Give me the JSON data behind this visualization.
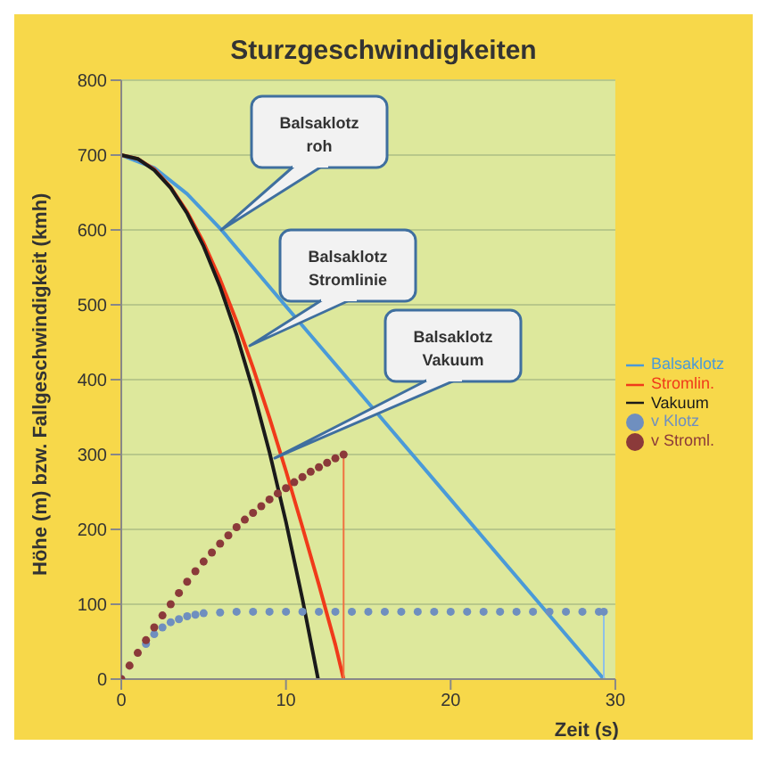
{
  "chart_data": {
    "type": "line",
    "title": "Sturzgeschwindigkeiten",
    "xlabel": "Zeit (s)",
    "ylabel": "Höhe (m) bzw. Fallgeschwindigkeit (kmh)",
    "xlim": [
      0,
      30
    ],
    "ylim": [
      0,
      800
    ],
    "xticks": [
      0,
      10,
      20,
      30
    ],
    "yticks": [
      0,
      100,
      200,
      300,
      400,
      500,
      600,
      700,
      800
    ],
    "grid": "y",
    "legend": "right",
    "series": [
      {
        "name": "Balsaklotz",
        "color": "#4a9ad8",
        "x": [
          0,
          2,
          4,
          6,
          10,
          15,
          20,
          25,
          29.3
        ],
        "values": [
          700,
          683,
          648,
          602,
          498,
          369,
          240,
          111,
          0
        ]
      },
      {
        "name": "Stromlin.",
        "color": "#f03a1a",
        "x": [
          0,
          1,
          2,
          3,
          4,
          5,
          6,
          7,
          8,
          9,
          10,
          11,
          12,
          13,
          13.5
        ],
        "values": [
          700,
          695,
          681,
          657,
          624,
          583,
          534,
          478,
          416,
          349,
          278,
          203,
          126,
          46,
          0
        ]
      },
      {
        "name": "Vakuum",
        "color": "#1a1a1a",
        "x": [
          0,
          1,
          2,
          3,
          4,
          5,
          6,
          7,
          8,
          9,
          10,
          11,
          11.95
        ],
        "values": [
          700,
          695,
          680,
          656,
          622,
          578,
          524,
          460,
          386,
          303,
          210,
          107,
          0
        ]
      },
      {
        "name": "v Klotz",
        "type": "scatter",
        "color": "#6f8fbf",
        "marker": "circle",
        "x": [
          0,
          0.5,
          1,
          1.5,
          2,
          2.5,
          3,
          3.5,
          4,
          4.5,
          5,
          6,
          7,
          8,
          9,
          10,
          11,
          12,
          13,
          14,
          15,
          16,
          17,
          18,
          19,
          20,
          21,
          22,
          23,
          24,
          25,
          26,
          27,
          28,
          29,
          29.3
        ],
        "values": [
          0,
          null,
          null,
          47,
          60,
          69,
          76,
          80,
          84,
          86,
          88,
          89,
          90,
          90,
          90,
          90,
          90,
          90,
          90,
          90,
          90,
          90,
          90,
          90,
          90,
          90,
          90,
          90,
          90,
          90,
          90,
          90,
          90,
          90,
          90,
          90
        ]
      },
      {
        "name": "v Stroml.",
        "type": "scatter",
        "color": "#8b3a3a",
        "marker": "circle",
        "x": [
          0,
          0.5,
          1,
          1.5,
          2,
          2.5,
          3,
          3.5,
          4,
          4.5,
          5,
          5.5,
          6,
          6.5,
          7,
          7.5,
          8,
          8.5,
          9,
          9.5,
          10,
          10.5,
          11,
          11.5,
          12,
          12.5,
          13,
          13.5
        ],
        "values": [
          0,
          18,
          35,
          52,
          69,
          85,
          100,
          115,
          130,
          144,
          157,
          169,
          181,
          192,
          203,
          213,
          222,
          231,
          240,
          248,
          255,
          263,
          270,
          277,
          283,
          289,
          295,
          300
        ]
      },
      {
        "color": "#f07040",
        "x": [
          13.5,
          13.5
        ],
        "values": [
          300,
          0
        ]
      },
      {
        "color": "#8ec0e8",
        "x": [
          29.3,
          29.3
        ],
        "values": [
          90,
          0
        ]
      }
    ],
    "annotations": [
      "Balsaklotz\nroh",
      "Balsaklotz\nStromlinie",
      "Balsaklotz\nVakuum"
    ]
  }
}
